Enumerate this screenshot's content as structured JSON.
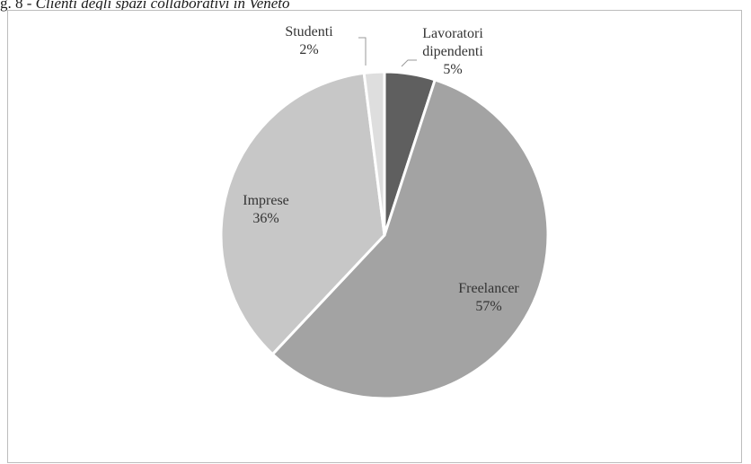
{
  "caption": {
    "prefix": "g. 8 - ",
    "title": "Clienti degli spazi collaborativi in Veneto"
  },
  "chart_data": {
    "type": "pie",
    "title": "",
    "start_angle_deg": 0,
    "direction": "clockwise",
    "legend": "none",
    "slices": [
      {
        "label": [
          "Lavoratori",
          "dipendenti"
        ],
        "value": 5,
        "value_label": "5%",
        "color": "#5f5f5f"
      },
      {
        "label": [
          "Freelancer"
        ],
        "value": 57,
        "value_label": "57%",
        "color": "#a3a3a3"
      },
      {
        "label": [
          "Imprese"
        ],
        "value": 36,
        "value_label": "36%",
        "color": "#c7c7c7"
      },
      {
        "label": [
          "Studenti"
        ],
        "value": 2,
        "value_label": "2%",
        "color": "#dedede"
      }
    ]
  }
}
